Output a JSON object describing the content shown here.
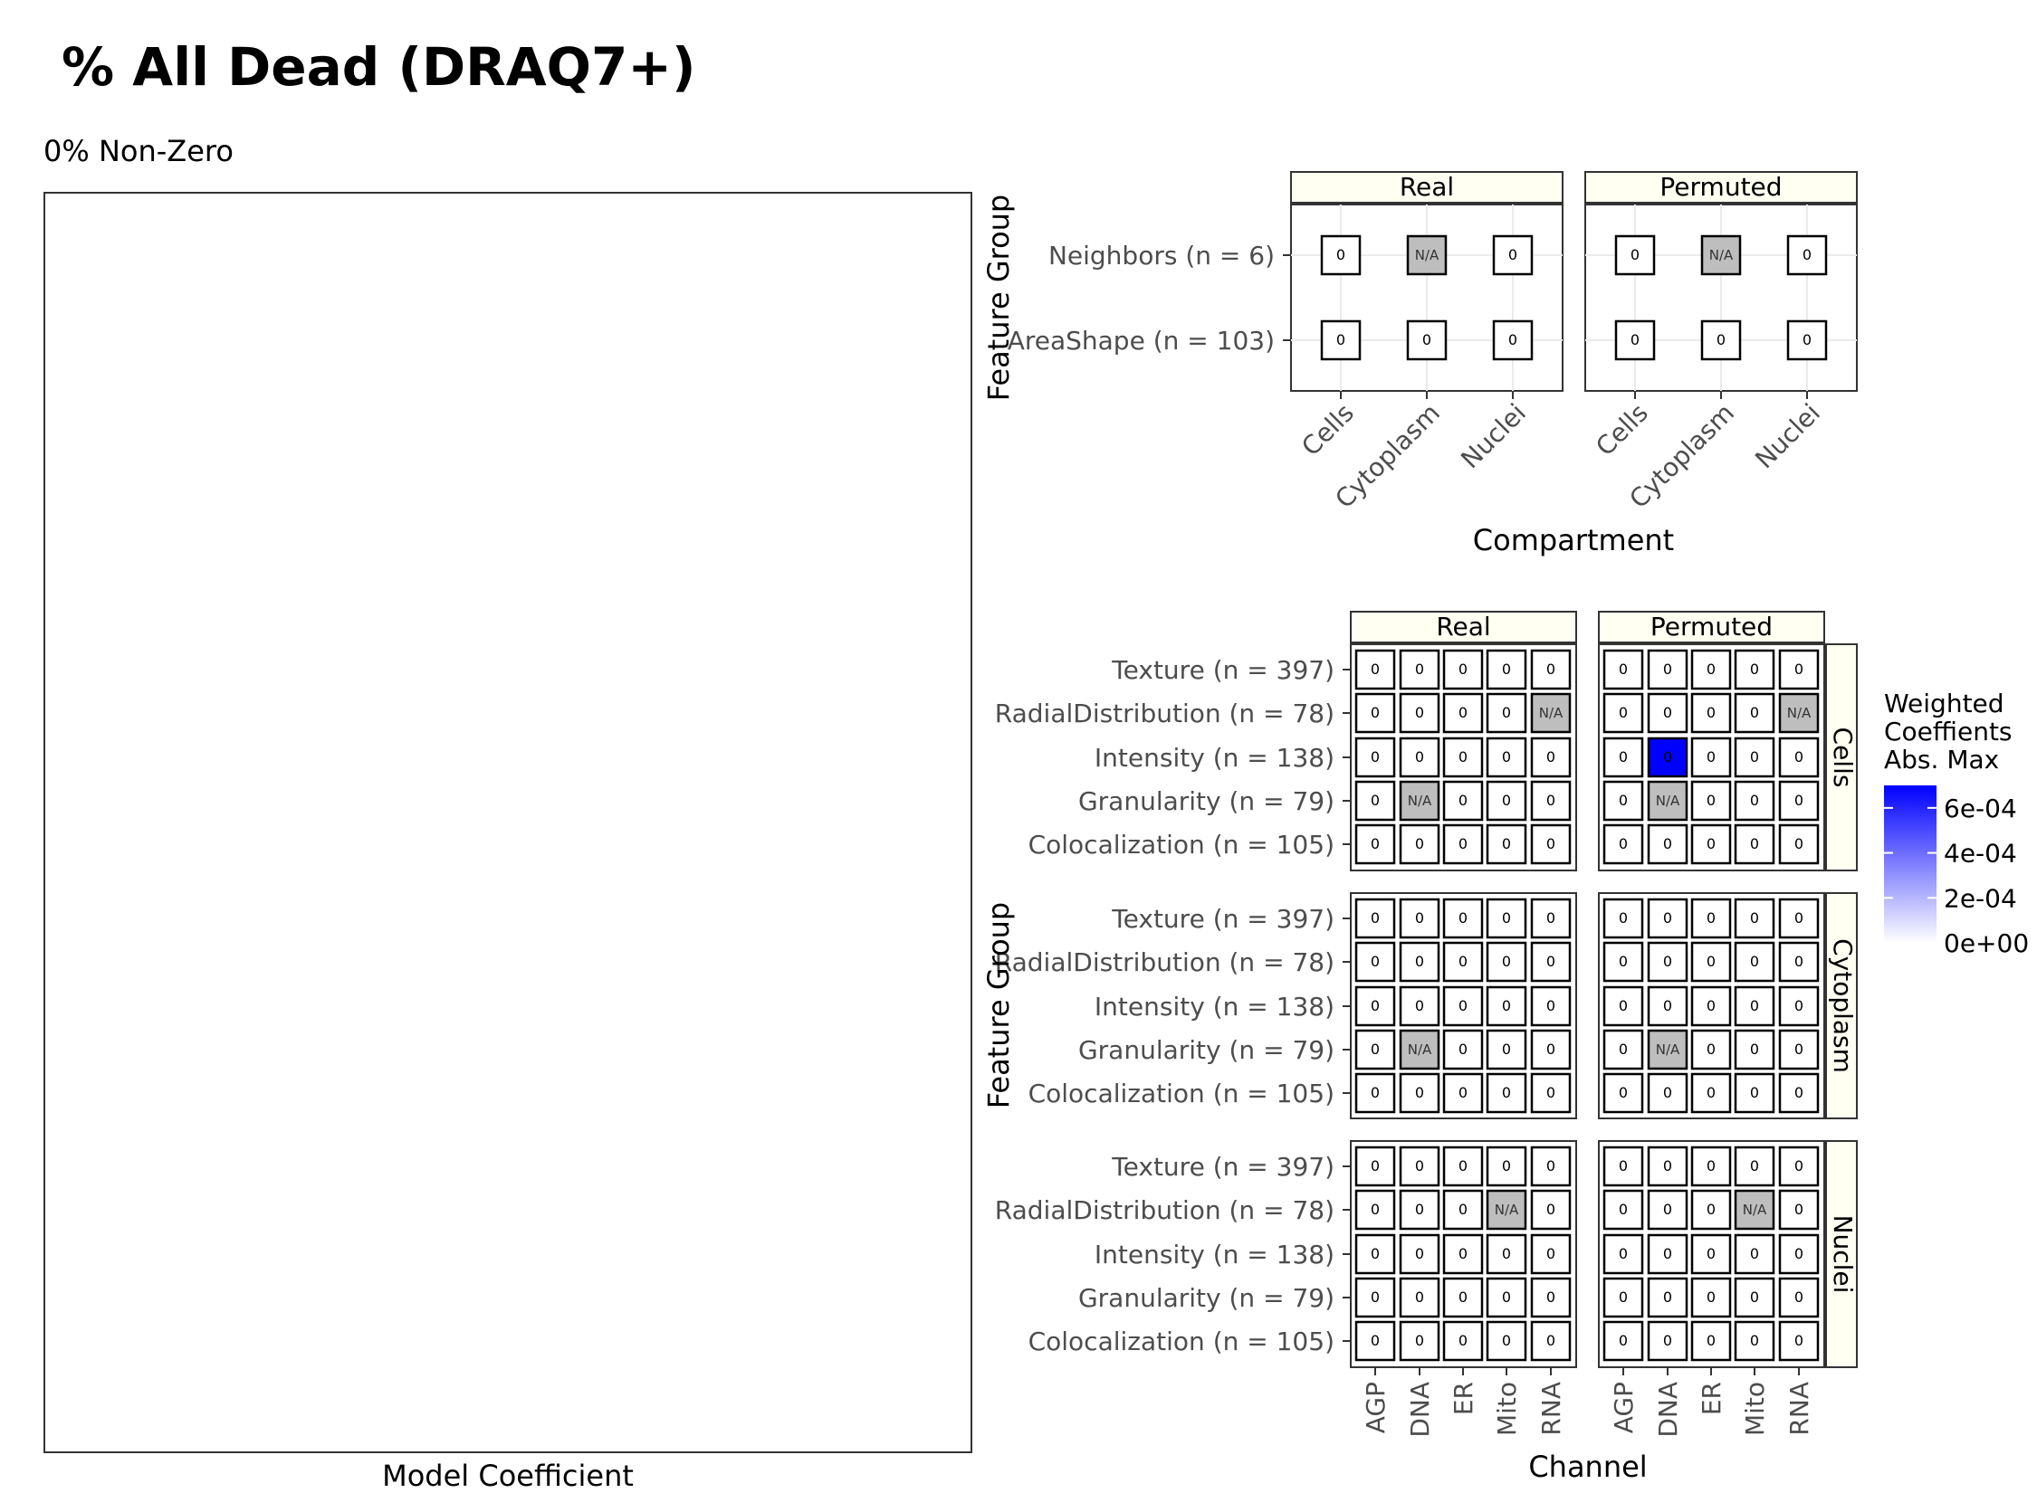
{
  "title": "% All Dead (DRAQ7+)",
  "subtitle": "0% Non-Zero",
  "coef_xlabel": "Model Coefficient",
  "chart_data": [
    {
      "type": "heatmap",
      "id": "areashape",
      "facets": [
        "Real",
        "Permuted"
      ],
      "x": [
        "Cells",
        "Cytoplasm",
        "Nuclei"
      ],
      "y": [
        "Neighbors (n = 6)",
        "AreaShape (n = 103)"
      ],
      "xlabel": "Compartment",
      "ylabel": "Feature Group",
      "cells": {
        "Real": [
          [
            "0",
            "N/A",
            "0"
          ],
          [
            "0",
            "0",
            "0"
          ]
        ],
        "Permuted": [
          [
            "0",
            "N/A",
            "0"
          ],
          [
            "0",
            "0",
            "0"
          ]
        ]
      }
    },
    {
      "type": "heatmap",
      "id": "channel",
      "facets": [
        "Real",
        "Permuted"
      ],
      "rows": [
        "Cells",
        "Cytoplasm",
        "Nuclei"
      ],
      "x": [
        "AGP",
        "DNA",
        "ER",
        "Mito",
        "RNA"
      ],
      "y": [
        "Texture (n = 397)",
        "RadialDistribution (n = 78)",
        "Intensity (n = 138)",
        "Granularity (n = 79)",
        "Colocalization (n = 105)"
      ],
      "xlabel": "Channel",
      "ylabel": "Feature Group",
      "cells": {
        "Cells": {
          "Real": [
            [
              "0",
              "0",
              "0",
              "0",
              "0"
            ],
            [
              "0",
              "0",
              "0",
              "0",
              "N/A"
            ],
            [
              "0",
              "0",
              "0",
              "0",
              "0"
            ],
            [
              "0",
              "N/A",
              "0",
              "0",
              "0"
            ],
            [
              "0",
              "0",
              "0",
              "0",
              "0"
            ]
          ],
          "Permuted": [
            [
              "0",
              "0",
              "0",
              "0",
              "0"
            ],
            [
              "0",
              "0",
              "0",
              "0",
              "N/A"
            ],
            [
              "0",
              "0",
              "0",
              "0",
              "0"
            ],
            [
              "0",
              "N/A",
              "0",
              "0",
              "0"
            ],
            [
              "0",
              "0",
              "0",
              "0",
              "0"
            ]
          ]
        },
        "Cytoplasm": {
          "Real": [
            [
              "0",
              "0",
              "0",
              "0",
              "0"
            ],
            [
              "0",
              "0",
              "0",
              "0",
              "0"
            ],
            [
              "0",
              "0",
              "0",
              "0",
              "0"
            ],
            [
              "0",
              "N/A",
              "0",
              "0",
              "0"
            ],
            [
              "0",
              "0",
              "0",
              "0",
              "0"
            ]
          ],
          "Permuted": [
            [
              "0",
              "0",
              "0",
              "0",
              "0"
            ],
            [
              "0",
              "0",
              "0",
              "0",
              "0"
            ],
            [
              "0",
              "0",
              "0",
              "0",
              "0"
            ],
            [
              "0",
              "N/A",
              "0",
              "0",
              "0"
            ],
            [
              "0",
              "0",
              "0",
              "0",
              "0"
            ]
          ]
        },
        "Nuclei": {
          "Real": [
            [
              "0",
              "0",
              "0",
              "0",
              "0"
            ],
            [
              "0",
              "0",
              "0",
              "N/A",
              "0"
            ],
            [
              "0",
              "0",
              "0",
              "0",
              "0"
            ],
            [
              "0",
              "0",
              "0",
              "0",
              "0"
            ],
            [
              "0",
              "0",
              "0",
              "0",
              "0"
            ]
          ],
          "Permuted": [
            [
              "0",
              "0",
              "0",
              "0",
              "0"
            ],
            [
              "0",
              "0",
              "0",
              "N/A",
              "0"
            ],
            [
              "0",
              "0",
              "0",
              "0",
              "0"
            ],
            [
              "0",
              "0",
              "0",
              "0",
              "0"
            ],
            [
              "0",
              "0",
              "0",
              "0",
              "0"
            ]
          ]
        }
      },
      "highlight": {
        "row": "Cells",
        "facet": "Permuted",
        "y": "Intensity (n = 138)",
        "x": "DNA",
        "value": 0.0007
      }
    }
  ],
  "legend": {
    "title": [
      "Weighted",
      "Coeffients",
      "Abs. Max"
    ],
    "ticks": [
      "6e-04",
      "4e-04",
      "2e-04",
      "0e+00"
    ],
    "tick_values": [
      0.0006,
      0.0004,
      0.0002,
      0
    ],
    "range": [
      0,
      0.0007
    ],
    "color_low": "#ffffff",
    "color_high": "#0000ff"
  },
  "colors": {
    "na_fill": "#bebebe",
    "strip_fill": "#fffff2",
    "grid": "#ebebeb"
  }
}
